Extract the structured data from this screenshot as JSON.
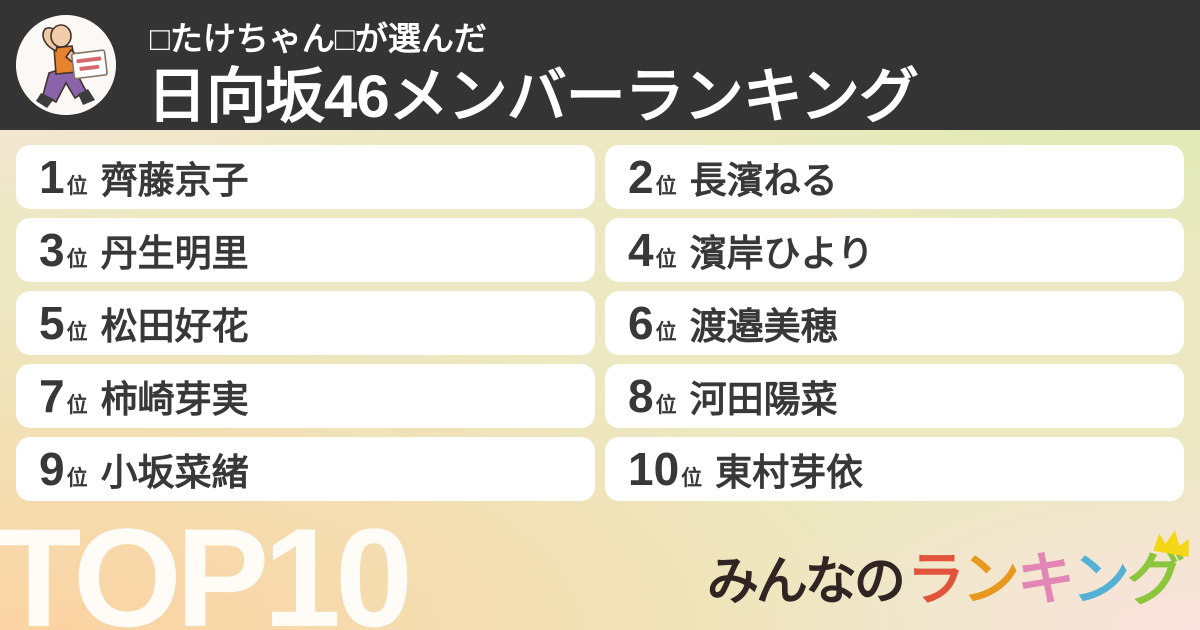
{
  "header": {
    "byline": "□たけちゃん□が選んだ",
    "title": "日向坂46メンバーランキング",
    "avatar_description": "muscle-man-cartoon-holding-sign",
    "background_color": "#343434",
    "text_color": "#ffffff"
  },
  "ranking": {
    "rank_suffix": "位",
    "items": [
      {
        "rank": "1",
        "name": "齊藤京子"
      },
      {
        "rank": "2",
        "name": "長濱ねる"
      },
      {
        "rank": "3",
        "name": "丹生明里"
      },
      {
        "rank": "4",
        "name": "濱岸ひより"
      },
      {
        "rank": "5",
        "name": "松田好花"
      },
      {
        "rank": "6",
        "name": "渡邉美穂"
      },
      {
        "rank": "7",
        "name": "柿崎芽実"
      },
      {
        "rank": "8",
        "name": "河田陽菜"
      },
      {
        "rank": "9",
        "name": "小坂菜緒"
      },
      {
        "rank": "10",
        "name": "東村芽依"
      }
    ],
    "card_background": "#ffffff",
    "card_text_color": "#383838"
  },
  "footer": {
    "top_label": "TOP10",
    "logo": {
      "prefix": "みんなの",
      "prefix_color": "#302523",
      "letters": [
        {
          "char": "ラ",
          "color": "#e2533b"
        },
        {
          "char": "ン",
          "color": "#e8981d"
        },
        {
          "char": "キ",
          "color": "#e287b5"
        },
        {
          "char": "ン",
          "color": "#55b0d5"
        },
        {
          "char": "グ",
          "color": "#8cc63e"
        }
      ],
      "crown_color": "#f5d616"
    }
  },
  "background_gradient": {
    "top_left": "#fce2de",
    "top_center": "#ece9c2",
    "top_right": "#d5ecaa",
    "bottom_left": "#fbd3a2",
    "bottom_center": "#fbd8c2",
    "bottom_right": "#fae3de"
  }
}
